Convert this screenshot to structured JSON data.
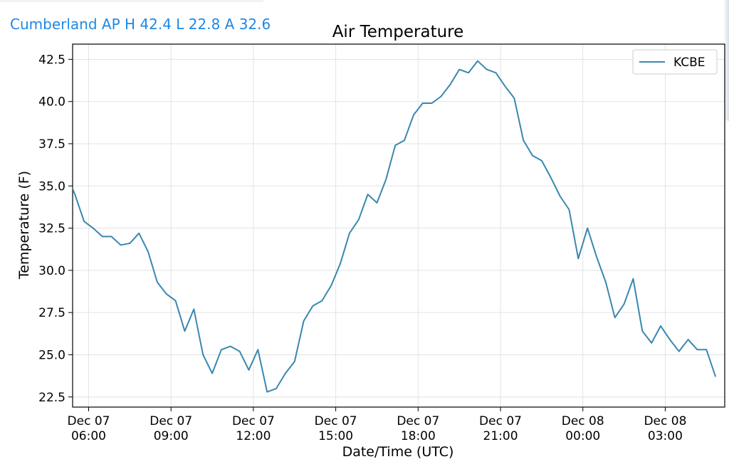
{
  "header": {
    "station_summary": "Cumberland AP H 42.4 L 22.8 A 32.6"
  },
  "colors": {
    "header_text": "#1e88e5",
    "series_line": "#3a87b0",
    "grid": "#e3e3e3",
    "axis": "#000000"
  },
  "chart_data": {
    "type": "line",
    "title": "Air Temperature",
    "xlabel": "Date/Time (UTC)",
    "ylabel": "Temperature (F)",
    "ylim": [
      21.9,
      43.4
    ],
    "xlim": [
      "2021-12-07 05:25",
      "2021-12-08 05:10"
    ],
    "grid": true,
    "legend": {
      "position": "top-right",
      "entries": [
        "KCBE"
      ]
    },
    "y_ticks": [
      22.5,
      25.0,
      27.5,
      30.0,
      32.5,
      35.0,
      37.5,
      40.0,
      42.5
    ],
    "y_tick_labels": [
      "22.5",
      "25.0",
      "27.5",
      "30.0",
      "32.5",
      "35.0",
      "37.5",
      "40.0",
      "42.5"
    ],
    "x_ticks": [
      "2021-12-07 06:00",
      "2021-12-07 09:00",
      "2021-12-07 12:00",
      "2021-12-07 15:00",
      "2021-12-07 18:00",
      "2021-12-07 21:00",
      "2021-12-08 00:00",
      "2021-12-08 03:00"
    ],
    "x_tick_labels": [
      [
        "Dec 07",
        "06:00"
      ],
      [
        "Dec 07",
        "09:00"
      ],
      [
        "Dec 07",
        "12:00"
      ],
      [
        "Dec 07",
        "15:00"
      ],
      [
        "Dec 07",
        "18:00"
      ],
      [
        "Dec 07",
        "21:00"
      ],
      [
        "Dec 08",
        "00:00"
      ],
      [
        "Dec 08",
        "03:00"
      ]
    ],
    "series": [
      {
        "name": "KCBE",
        "color": "#3a87b0",
        "x": [
          "2021-12-07 05:10",
          "2021-12-07 05:30",
          "2021-12-07 05:50",
          "2021-12-07 06:10",
          "2021-12-07 06:30",
          "2021-12-07 06:50",
          "2021-12-07 07:10",
          "2021-12-07 07:30",
          "2021-12-07 07:50",
          "2021-12-07 08:10",
          "2021-12-07 08:30",
          "2021-12-07 08:50",
          "2021-12-07 09:10",
          "2021-12-07 09:30",
          "2021-12-07 09:50",
          "2021-12-07 10:10",
          "2021-12-07 10:30",
          "2021-12-07 10:50",
          "2021-12-07 11:10",
          "2021-12-07 11:30",
          "2021-12-07 11:50",
          "2021-12-07 12:10",
          "2021-12-07 12:30",
          "2021-12-07 12:50",
          "2021-12-07 13:10",
          "2021-12-07 13:30",
          "2021-12-07 13:50",
          "2021-12-07 14:10",
          "2021-12-07 14:30",
          "2021-12-07 14:50",
          "2021-12-07 15:10",
          "2021-12-07 15:30",
          "2021-12-07 15:50",
          "2021-12-07 16:10",
          "2021-12-07 16:30",
          "2021-12-07 16:50",
          "2021-12-07 17:10",
          "2021-12-07 17:30",
          "2021-12-07 17:50",
          "2021-12-07 18:10",
          "2021-12-07 18:30",
          "2021-12-07 18:50",
          "2021-12-07 19:10",
          "2021-12-07 19:30",
          "2021-12-07 19:50",
          "2021-12-07 20:10",
          "2021-12-07 20:30",
          "2021-12-07 20:50",
          "2021-12-07 21:10",
          "2021-12-07 21:30",
          "2021-12-07 21:50",
          "2021-12-07 22:10",
          "2021-12-07 22:30",
          "2021-12-07 22:50",
          "2021-12-07 23:10",
          "2021-12-07 23:30",
          "2021-12-07 23:50",
          "2021-12-08 00:10",
          "2021-12-08 00:30",
          "2021-12-08 00:50",
          "2021-12-08 01:10",
          "2021-12-08 01:30",
          "2021-12-08 01:50",
          "2021-12-08 02:10",
          "2021-12-08 02:30",
          "2021-12-08 02:50",
          "2021-12-08 03:10",
          "2021-12-08 03:30",
          "2021-12-08 03:50",
          "2021-12-08 04:10",
          "2021-12-08 04:30",
          "2021-12-08 04:50"
        ],
        "values": [
          35.8,
          34.5,
          32.9,
          32.5,
          32.0,
          32.0,
          31.5,
          31.6,
          32.2,
          31.1,
          29.3,
          28.6,
          28.2,
          26.4,
          27.7,
          25.0,
          23.9,
          25.3,
          25.5,
          25.2,
          24.1,
          25.3,
          22.8,
          23.0,
          23.9,
          24.6,
          27.0,
          27.9,
          28.2,
          29.1,
          30.4,
          32.2,
          33.0,
          34.5,
          34.0,
          35.4,
          37.4,
          37.7,
          39.2,
          39.9,
          39.9,
          40.3,
          41.0,
          41.9,
          41.7,
          42.4,
          41.9,
          41.7,
          40.9,
          40.2,
          37.7,
          36.8,
          36.5,
          35.5,
          34.4,
          33.6,
          30.7,
          32.5,
          30.8,
          29.3,
          27.2,
          28.0,
          29.5,
          26.4,
          25.7,
          26.7,
          25.9,
          25.2,
          25.9,
          25.3,
          25.3,
          23.7
        ]
      }
    ]
  }
}
